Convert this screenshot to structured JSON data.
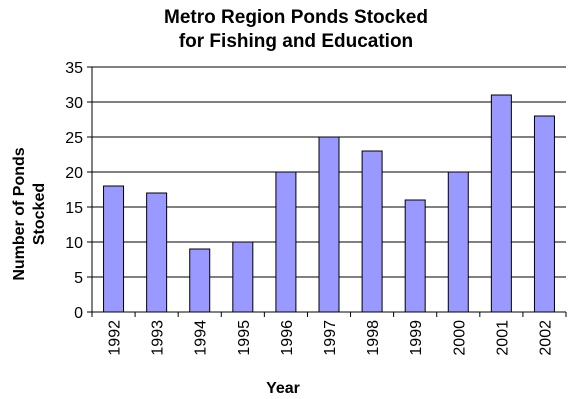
{
  "chart_data": {
    "type": "bar",
    "title": [
      "Metro Region Ponds Stocked",
      "for Fishing and Education"
    ],
    "xlabel": "Year",
    "ylabel": [
      "Number of Ponds",
      "Stocked"
    ],
    "categories": [
      "1992",
      "1993",
      "1994",
      "1995",
      "1996",
      "1997",
      "1998",
      "1999",
      "2000",
      "2001",
      "2002"
    ],
    "values": [
      18,
      17,
      9,
      10,
      20,
      25,
      23,
      16,
      20,
      31,
      28
    ],
    "ylim": [
      0,
      35
    ],
    "yticks": [
      "0",
      "5",
      "10",
      "15",
      "20",
      "25",
      "30",
      "35"
    ],
    "grid": true,
    "bar_color": "#9999ff"
  }
}
